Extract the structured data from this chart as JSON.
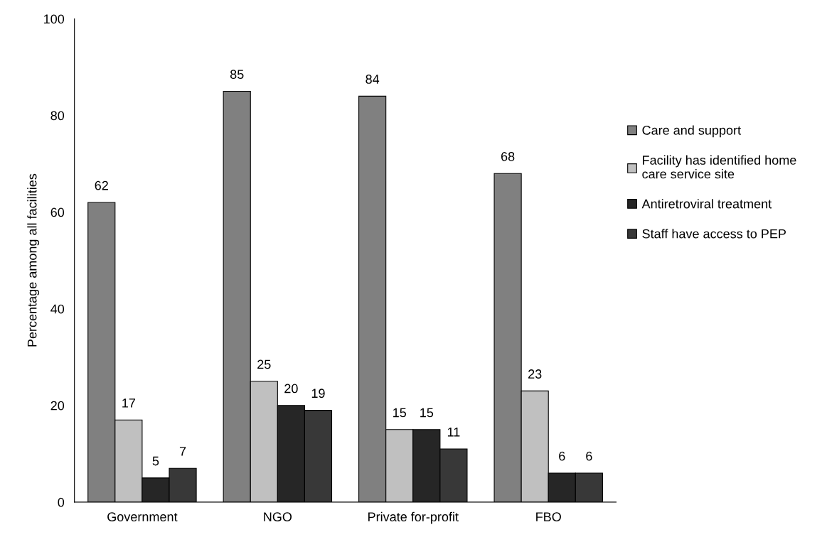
{
  "chart_data": {
    "type": "bar",
    "ylabel": "Percentage among all facilities",
    "categories": [
      "Government",
      "NGO",
      "Private for-profit",
      "FBO"
    ],
    "series": [
      {
        "name": "Care and support",
        "color": "#808080",
        "values": [
          62,
          85,
          84,
          68
        ]
      },
      {
        "name": "Facility has identified home care service site",
        "color": "#c0c0c0",
        "values": [
          17,
          25,
          15,
          23
        ]
      },
      {
        "name": "Antiretroviral treatment",
        "color": "#262626",
        "values": [
          5,
          20,
          15,
          6
        ]
      },
      {
        "name": "Staff have access to PEP",
        "color": "#383838",
        "values": [
          7,
          19,
          11,
          6
        ]
      }
    ],
    "ylim": [
      0,
      100
    ],
    "yticks": [
      0,
      20,
      40,
      60,
      80,
      100
    ],
    "grid": false,
    "legend": "right",
    "data_labels": true
  }
}
